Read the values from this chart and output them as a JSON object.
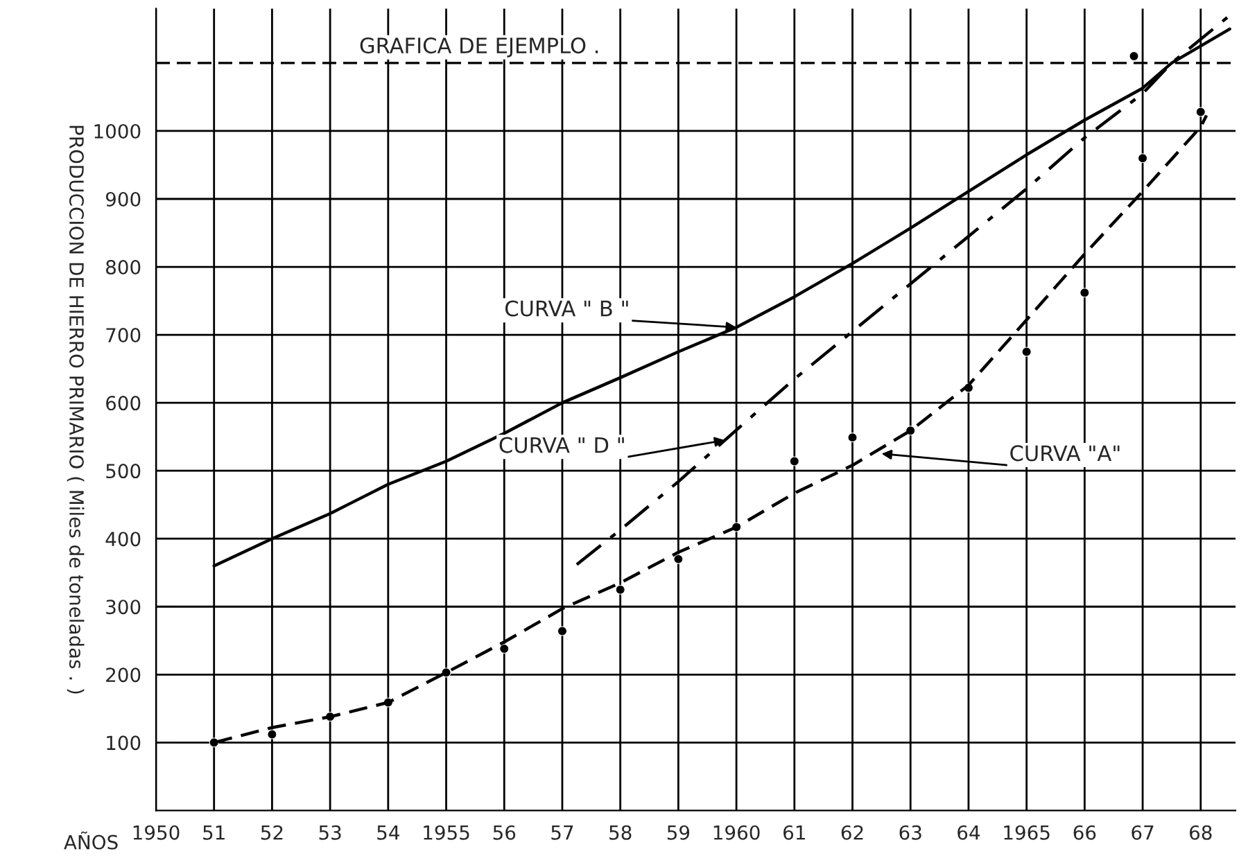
{
  "chart_data": {
    "type": "line",
    "xlabel": "AÑOS",
    "ylabel": "PRODUCCION DE HIERRO PRIMARIO ( Miles de toneladas . )",
    "xlim": [
      1950,
      1968.6
    ],
    "ylim": [
      0,
      1180
    ],
    "xticks": [
      {
        "value": 1950,
        "label": "1950"
      },
      {
        "value": 1951,
        "label": "51"
      },
      {
        "value": 1952,
        "label": "52"
      },
      {
        "value": 1953,
        "label": "53"
      },
      {
        "value": 1954,
        "label": "54"
      },
      {
        "value": 1955,
        "label": "1955"
      },
      {
        "value": 1956,
        "label": "56"
      },
      {
        "value": 1957,
        "label": "57"
      },
      {
        "value": 1958,
        "label": "58"
      },
      {
        "value": 1959,
        "label": "59"
      },
      {
        "value": 1960,
        "label": "1960"
      },
      {
        "value": 1961,
        "label": "61"
      },
      {
        "value": 1962,
        "label": "62"
      },
      {
        "value": 1963,
        "label": "63"
      },
      {
        "value": 1964,
        "label": "64"
      },
      {
        "value": 1965,
        "label": "1965"
      },
      {
        "value": 1966,
        "label": "66"
      },
      {
        "value": 1967,
        "label": "67"
      },
      {
        "value": 1968,
        "label": "68"
      }
    ],
    "yticks": [
      100,
      200,
      300,
      400,
      500,
      600,
      700,
      800,
      900,
      1000
    ],
    "grid": true,
    "marker": "none",
    "series": [
      {
        "color": "#000000",
        "line_style": "solid",
        "x": [
          1951,
          1952,
          1953,
          1954,
          1955,
          1956,
          1957,
          1958,
          1959,
          1960,
          1961,
          1962,
          1963,
          1964,
          1965,
          1966,
          1967,
          1967.5,
          1968.5
        ],
        "values": [
          360,
          400,
          437,
          480,
          514,
          555,
          600,
          637,
          675,
          711,
          756,
          805,
          857,
          911,
          965,
          1016,
          1063,
          1100,
          1150
        ]
      },
      {
        "color": "#000000",
        "line_style": "dashdot",
        "x": [
          1957.25,
          1958,
          1959,
          1960,
          1961,
          1962,
          1963,
          1964,
          1965,
          1966,
          1967,
          1967.5,
          1968.5
        ],
        "values": [
          362,
          413,
          484,
          560,
          635,
          705,
          775,
          845,
          915,
          990,
          1055,
          1100,
          1170
        ]
      },
      {
        "color": "#000000",
        "line_style": "dashed",
        "x": [
          1951,
          1952,
          1953,
          1954,
          1955,
          1956,
          1957,
          1958,
          1959,
          1960,
          1961,
          1962,
          1963,
          1964,
          1965,
          1966,
          1967,
          1968,
          1968.1
        ],
        "values": [
          100,
          122,
          138,
          159,
          203,
          248,
          297,
          335,
          380,
          417,
          467,
          508,
          559,
          626,
          722,
          819,
          911,
          1006,
          1023
        ]
      },
      {
        "type": "scatter",
        "color": "#000000",
        "marker": "circle",
        "x": [
          1951,
          1952,
          1953,
          1954,
          1955,
          1956,
          1957,
          1958,
          1959,
          1960,
          1961,
          1962,
          1963,
          1964,
          1965,
          1966,
          1967,
          1968,
          1966.85
        ],
        "values": [
          100,
          112,
          138,
          159,
          203,
          238,
          264,
          325,
          370,
          417,
          514,
          549,
          559,
          622,
          675,
          762,
          960,
          1028,
          1110
        ]
      }
    ],
    "ref_lines": [
      {
        "axis": "y",
        "value": 1100,
        "label": "GRAFICA DE EJEMPLO .",
        "color": "#000000",
        "line_style": "dashed"
      }
    ],
    "annotations": [
      {
        "text": "CURVA \" B \"",
        "x": 1960,
        "y": 711
      },
      {
        "text": "CURVA \" D \"",
        "x": 1959.8,
        "y": 545
      },
      {
        "text": "CURVA \"A\"",
        "x": 1962.5,
        "y": 525
      }
    ]
  }
}
